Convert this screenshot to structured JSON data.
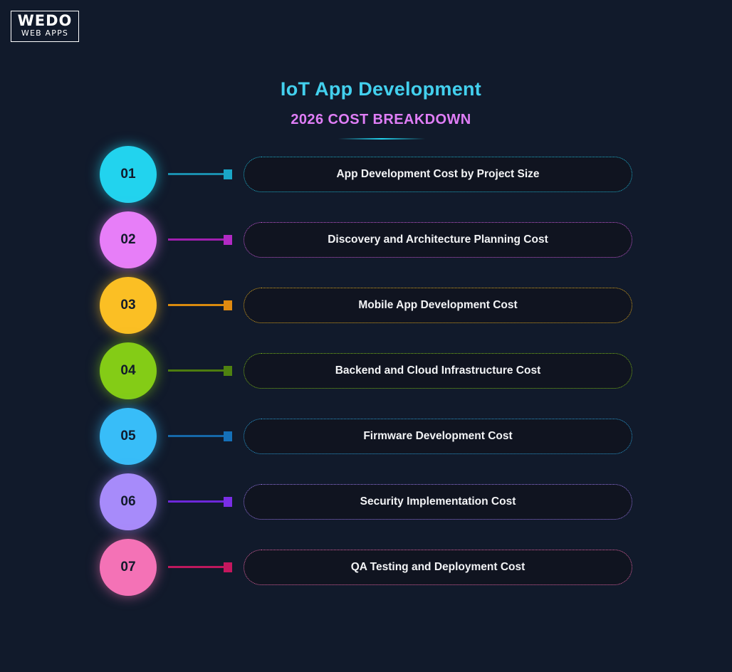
{
  "logo": {
    "top": "WEDO",
    "bottom": "WEB APPS"
  },
  "header": {
    "title": "IoT App Development",
    "subtitle": "2026 COST BREAKDOWN"
  },
  "colors": {
    "background": "#111a2b",
    "title": "#43d0ee",
    "subtitle": "#e07ef7"
  },
  "items": [
    {
      "number": "01",
      "label": "App Development Cost by Project Size",
      "color": "#22d3ee",
      "line": "#1a8fae",
      "square": "#1aa6c7",
      "border": "#1fb3d1"
    },
    {
      "number": "02",
      "label": "Discovery and Architecture Planning Cost",
      "color": "#e77ef8",
      "line": "#a11fb0",
      "square": "#b22ac4",
      "border": "#c45ad8"
    },
    {
      "number": "03",
      "label": "Mobile App Development Cost",
      "color": "#fbbf24",
      "line": "#d98a0e",
      "square": "#e08a10",
      "border": "#d9a520"
    },
    {
      "number": "04",
      "label": "Backend and Cloud Infrastructure Cost",
      "color": "#84cc16",
      "line": "#4d7c0f",
      "square": "#4f8210",
      "border": "#78b81a"
    },
    {
      "number": "05",
      "label": "Firmware Development Cost",
      "color": "#38bdf8",
      "line": "#1668a8",
      "square": "#1570b8",
      "border": "#2a9fd8"
    },
    {
      "number": "06",
      "label": "Security Implementation Cost",
      "color": "#a78bfa",
      "line": "#6d28d9",
      "square": "#7a2ee6",
      "border": "#9677e8"
    },
    {
      "number": "07",
      "label": "QA Testing and Deployment Cost",
      "color": "#f472b6",
      "line": "#be185d",
      "square": "#c4175e",
      "border": "#e065a4"
    }
  ]
}
